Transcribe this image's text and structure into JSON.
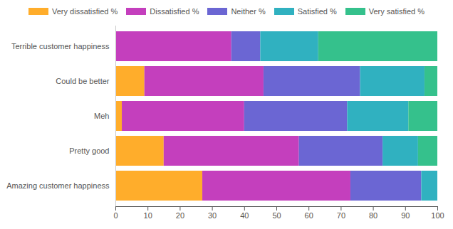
{
  "chart_data": {
    "type": "bar",
    "orientation": "horizontal",
    "stacked": true,
    "legend": "top",
    "grid": false,
    "categories": [
      "Terrible customer happiness",
      "Could be better",
      "Meh",
      "Pretty good",
      "Amazing customer happiness"
    ],
    "series": [
      {
        "name": "Very dissatisfied %",
        "color": "#ffad2b",
        "values": [
          0,
          9,
          2,
          15,
          27
        ]
      },
      {
        "name": "Dissatisfied %",
        "color": "#c43fbd",
        "values": [
          36,
          37,
          38,
          42,
          46
        ]
      },
      {
        "name": "Neither %",
        "color": "#6b66d3",
        "values": [
          9,
          30,
          32,
          26,
          22
        ]
      },
      {
        "name": "Satisfied %",
        "color": "#30b1c0",
        "values": [
          18,
          20,
          19,
          11,
          5
        ]
      },
      {
        "name": "Very satisfied %",
        "color": "#35c18c",
        "values": [
          37,
          4,
          9,
          6,
          0
        ]
      }
    ],
    "xlim": [
      0,
      100
    ],
    "xticks": [
      0,
      10,
      20,
      30,
      40,
      50,
      60,
      70,
      80,
      90,
      100
    ]
  }
}
